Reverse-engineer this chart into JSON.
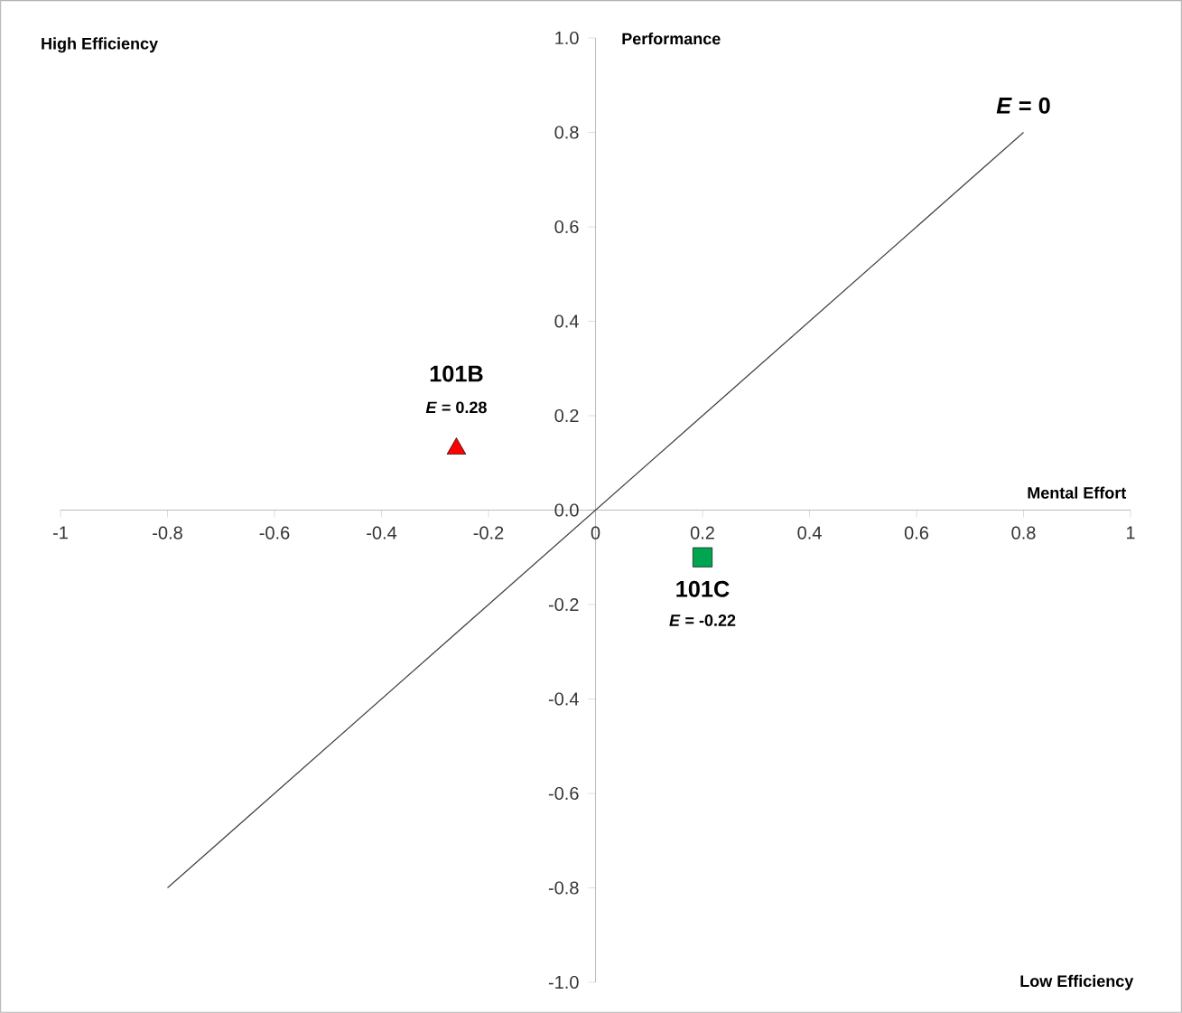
{
  "chart_data": {
    "type": "scatter",
    "xlabel": "Mental Effort",
    "ylabel": "Performance",
    "xlim": [
      -1,
      1
    ],
    "ylim": [
      -1,
      1
    ],
    "xticks": [
      -1,
      -0.8,
      -0.6,
      -0.4,
      -0.2,
      0,
      0.2,
      0.4,
      0.6,
      0.8,
      1
    ],
    "yticks": [
      {
        "value": -1,
        "label": "-1.0"
      },
      {
        "value": -0.8,
        "label": "-0.8"
      },
      {
        "value": -0.6,
        "label": "-0.6"
      },
      {
        "value": -0.4,
        "label": "-0.4"
      },
      {
        "value": -0.2,
        "label": "-0.2"
      },
      {
        "value": 0,
        "label": "0.0"
      },
      {
        "value": 0.2,
        "label": "0.2"
      },
      {
        "value": 0.4,
        "label": "0.4"
      },
      {
        "value": 0.6,
        "label": "0.6"
      },
      {
        "value": 0.8,
        "label": "0.8"
      },
      {
        "value": 1,
        "label": "1.0"
      }
    ],
    "series": [
      {
        "name": "101B",
        "marker": "triangle",
        "color": "#ff0000",
        "x": [
          -0.26
        ],
        "values": [
          0.13
        ]
      },
      {
        "name": "101C",
        "marker": "square",
        "color": "#00a550",
        "x": [
          0.2
        ],
        "values": [
          -0.1
        ]
      },
      {
        "name": "*E* = 0",
        "type": "line",
        "marker": "none",
        "color": "#404040",
        "x": [
          -0.8,
          0.8
        ],
        "values": [
          -0.8,
          0.8
        ]
      }
    ],
    "annotations": [
      "High Efficiency",
      "Low Efficiency",
      "*E* = 0.28",
      "*E* = -0.22"
    ]
  }
}
